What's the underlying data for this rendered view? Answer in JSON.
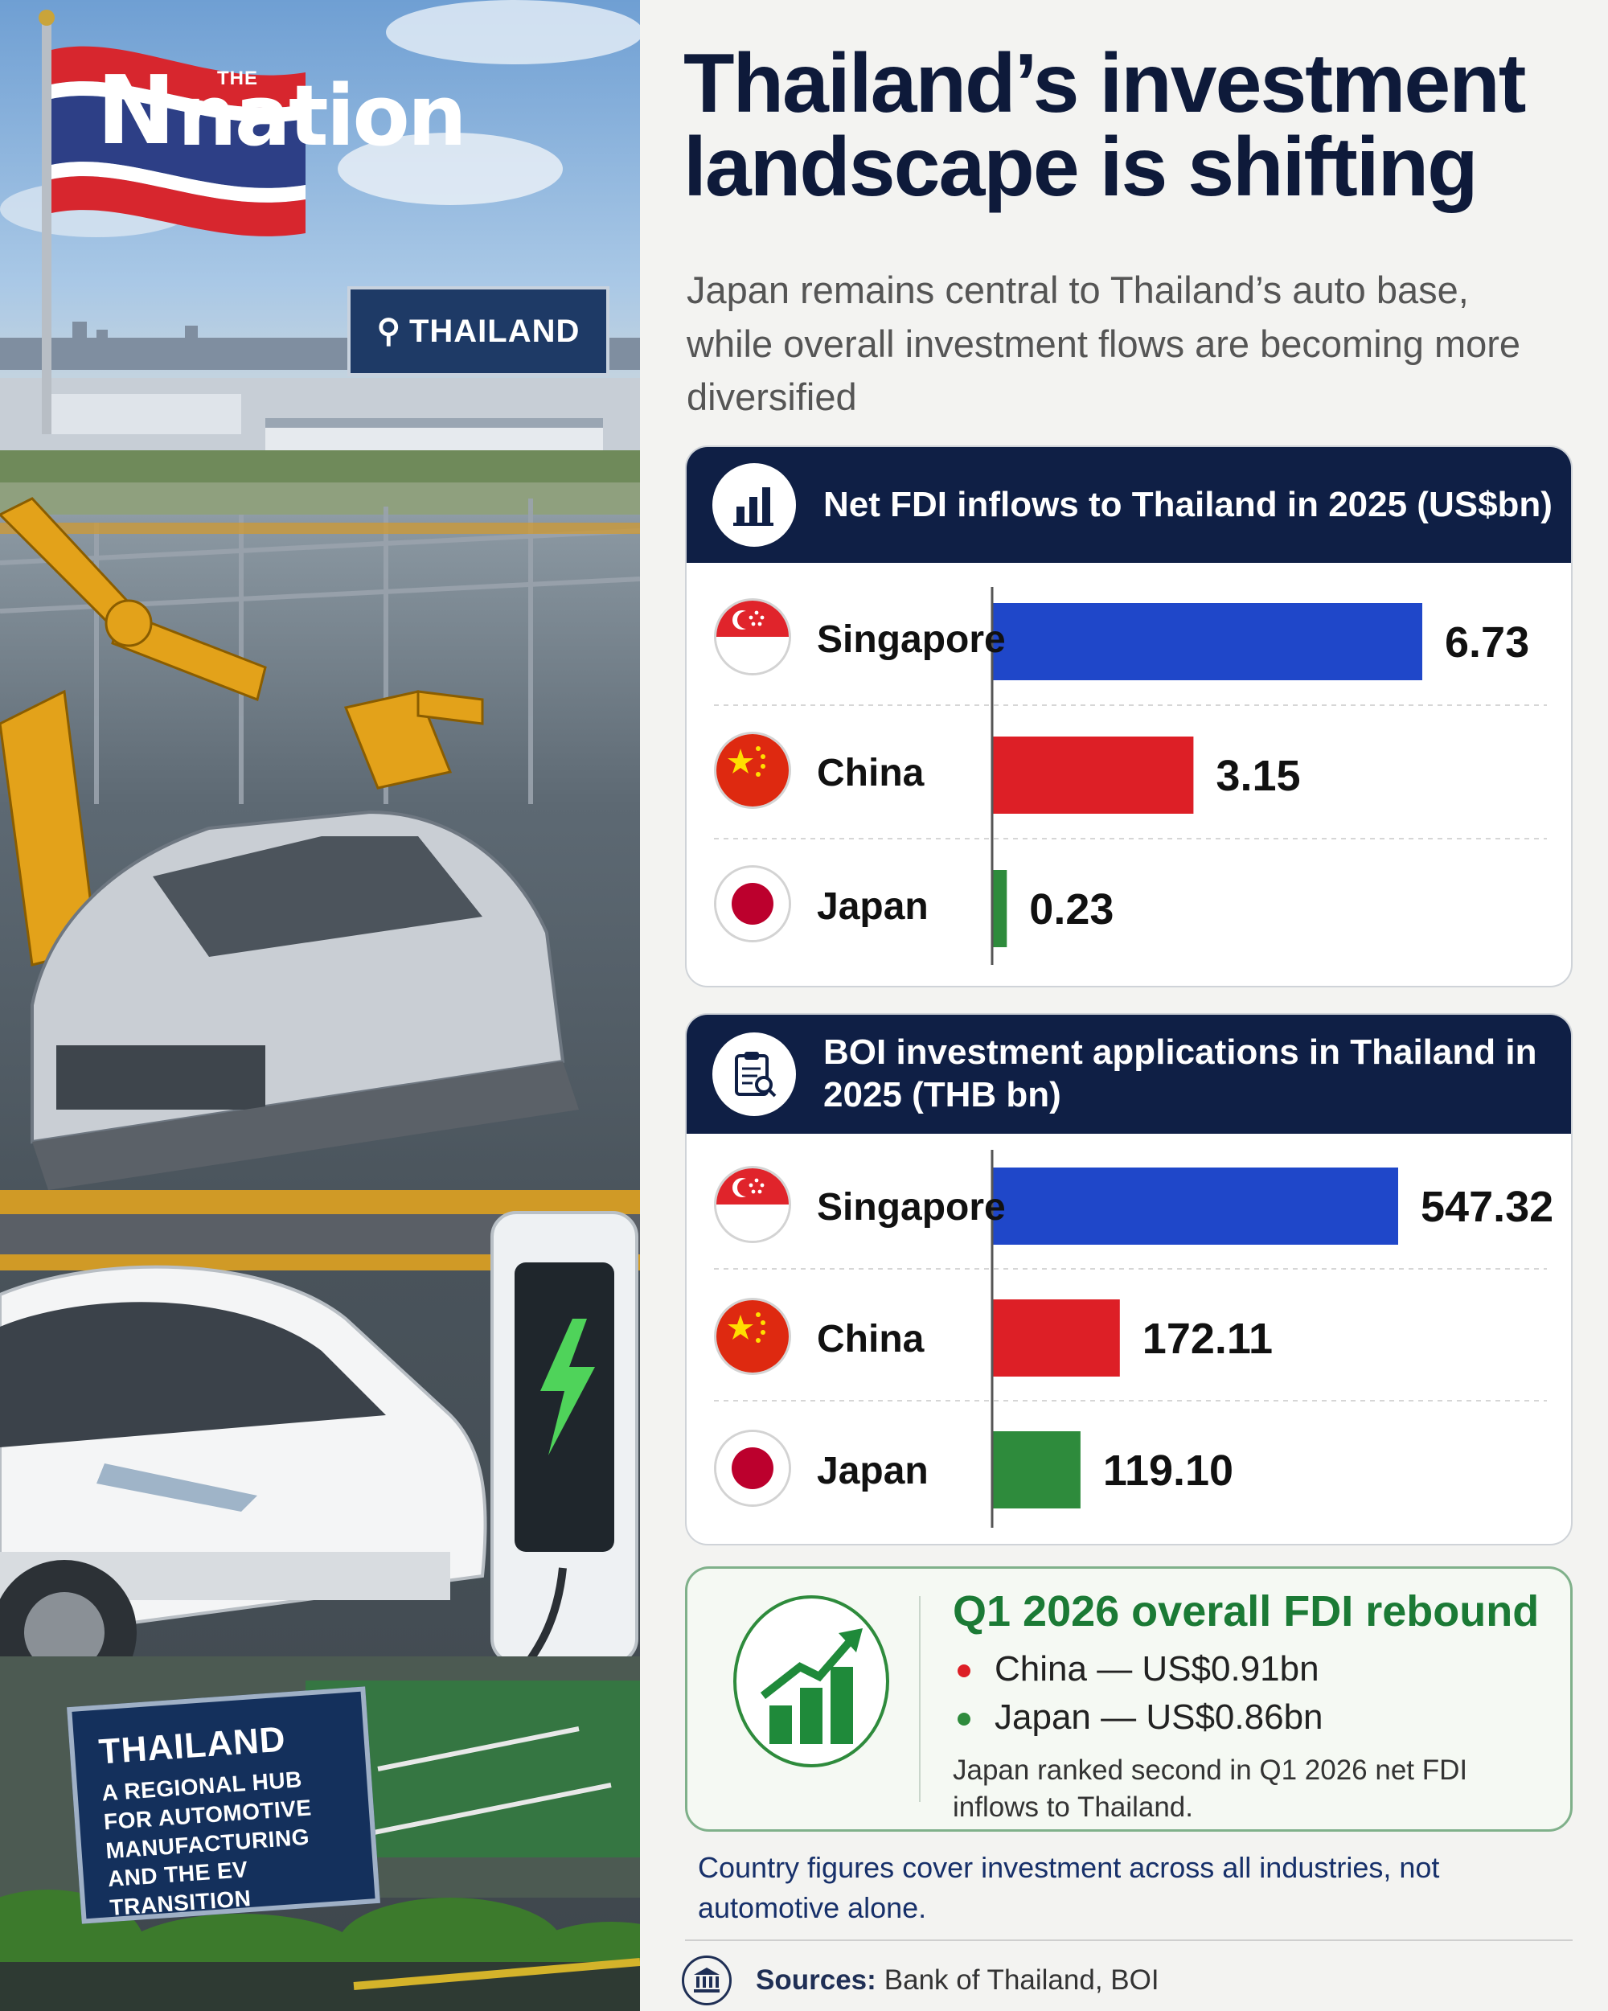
{
  "brand": {
    "the": "THE",
    "n": "N",
    "word": "nation"
  },
  "illustration": {
    "location_sign": "THAILAND",
    "hub_sign": {
      "title": "THAILAND",
      "lines": [
        "A REGIONAL HUB",
        "FOR AUTOMOTIVE",
        "MANUFACTURING",
        "AND THE EV TRANSITION"
      ]
    }
  },
  "headline": {
    "line1": "Thailand’s investment",
    "line2": "landscape is shifting"
  },
  "subtitle": "Japan remains central to Thailand’s auto base, while overall investment flows are becoming more diversified",
  "chart_data": [
    {
      "type": "bar",
      "orientation": "horizontal",
      "title": "Net FDI inflows to Thailand in 2025 (US$bn)",
      "categories": [
        "Singapore",
        "China",
        "Japan"
      ],
      "values": [
        6.73,
        3.15,
        0.23
      ],
      "value_labels": [
        "6.73",
        "3.15",
        "0.23"
      ],
      "colors": [
        "#1f47c9",
        "#dd1f26",
        "#2e8b3c"
      ],
      "grid": false
    },
    {
      "type": "bar",
      "orientation": "horizontal",
      "title": "BOI investment applications in Thailand in 2025 (THB bn)",
      "categories": [
        "Singapore",
        "China",
        "Japan"
      ],
      "values": [
        547.32,
        172.11,
        119.1
      ],
      "value_labels": [
        "547.32",
        "172.11",
        "119.10"
      ],
      "colors": [
        "#1f47c9",
        "#dd1f26",
        "#2e8b3c"
      ],
      "grid": false
    }
  ],
  "rebound": {
    "title": "Q1 2026 overall FDI rebound",
    "items": [
      {
        "text": "China — US$0.91bn",
        "color": "#dd1f26"
      },
      {
        "text": "Japan — US$0.86bn",
        "color": "#2e8b3c"
      }
    ],
    "note": "Japan ranked second in Q1 2026 net FDI inflows to Thailand."
  },
  "footnote": "Country figures cover investment across all industries, not automotive alone.",
  "sources": {
    "label": "Sources:",
    "text": "Bank of Thailand, BOI"
  }
}
